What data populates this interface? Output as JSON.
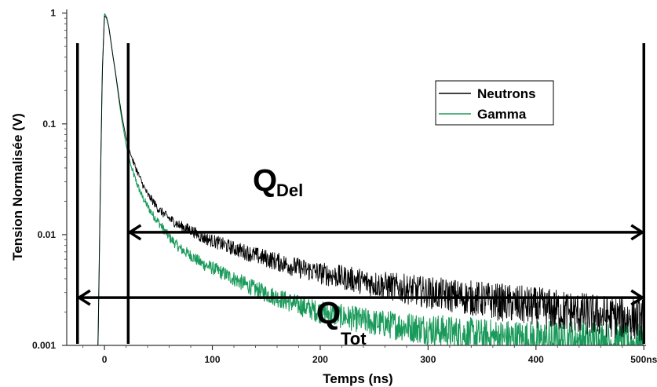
{
  "chart_data": {
    "type": "line",
    "xlabel": "Temps (ns)",
    "ylabel": "Tension Normalisée (V)",
    "xlim": [
      -35,
      502
    ],
    "ylim": [
      0.001,
      1.08
    ],
    "yscale": "log",
    "x_ticks": [
      {
        "value": 0,
        "label": "0"
      },
      {
        "value": 100,
        "label": "100"
      },
      {
        "value": 200,
        "label": "200"
      },
      {
        "value": 300,
        "label": "300"
      },
      {
        "value": 400,
        "label": "400"
      },
      {
        "value": 500,
        "label": "500ns"
      }
    ],
    "y_ticks": [
      {
        "value": 1,
        "label": "1"
      },
      {
        "value": 0.1,
        "label": "0.1"
      },
      {
        "value": 0.01,
        "label": "0.01"
      },
      {
        "value": 0.001,
        "label": "0.001"
      }
    ],
    "grid": false,
    "legend_position": "top-right",
    "series": [
      {
        "name": "Neutrons",
        "color": "#000000",
        "x": [
          -25,
          -6,
          -4,
          -2,
          0,
          2,
          4,
          6,
          8,
          10,
          12,
          14,
          16,
          18,
          20,
          25,
          30,
          35,
          40,
          45,
          50,
          60,
          70,
          80,
          90,
          100,
          120,
          140,
          160,
          180,
          200,
          250,
          300,
          350,
          400,
          450,
          500
        ],
        "y": [
          0.001,
          0.001,
          0.02,
          0.3,
          0.95,
          0.9,
          0.75,
          0.55,
          0.4,
          0.3,
          0.22,
          0.16,
          0.12,
          0.095,
          0.075,
          0.05,
          0.038,
          0.029,
          0.023,
          0.02,
          0.017,
          0.014,
          0.012,
          0.011,
          0.0095,
          0.0088,
          0.0075,
          0.0065,
          0.0057,
          0.005,
          0.0045,
          0.0036,
          0.003,
          0.0026,
          0.0022,
          0.0019,
          0.0017
        ]
      },
      {
        "name": "Gamma",
        "color": "#1a9a5a",
        "x": [
          -6,
          -4,
          -2,
          0,
          2,
          4,
          6,
          8,
          10,
          12,
          14,
          16,
          18,
          20,
          25,
          30,
          35,
          40,
          45,
          50,
          60,
          70,
          80,
          90,
          100,
          120,
          140,
          160,
          180,
          200,
          250,
          300,
          350,
          400,
          450,
          500
        ],
        "y": [
          0.001,
          0.02,
          0.3,
          1.0,
          0.92,
          0.75,
          0.55,
          0.4,
          0.3,
          0.21,
          0.15,
          0.11,
          0.085,
          0.065,
          0.04,
          0.029,
          0.022,
          0.018,
          0.015,
          0.013,
          0.0095,
          0.0075,
          0.0065,
          0.0055,
          0.005,
          0.004,
          0.0032,
          0.0027,
          0.0023,
          0.002,
          0.0016,
          0.0014,
          0.0012,
          0.0011,
          0.0011,
          0.001
        ]
      }
    ],
    "annotations": [
      {
        "main": "Q",
        "sub": "Del",
        "x_start": 22,
        "x_end": 500,
        "y": 0.0105
      },
      {
        "main": "Q",
        "sub": "Tot",
        "x_start": -25,
        "x_end": 500,
        "y": 0.0027
      }
    ],
    "integration_bounds_x": [
      -25,
      22,
      500
    ]
  }
}
